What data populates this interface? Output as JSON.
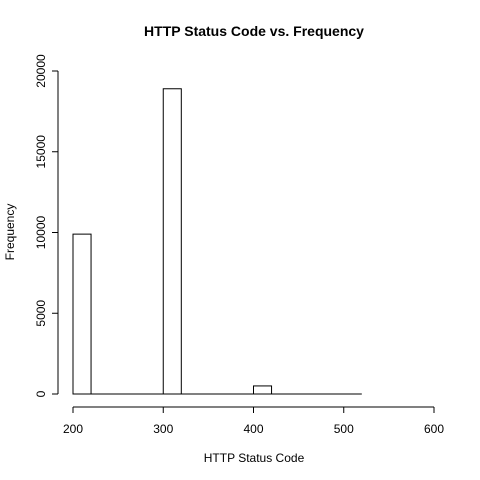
{
  "chart_data": {
    "type": "bar",
    "title": "HTTP Status Code vs. Frequency",
    "xlabel": "HTTP Status Code",
    "ylabel": "Frequency",
    "xlim": [
      200,
      600
    ],
    "ylim": [
      0,
      20000
    ],
    "x_ticks": [
      200,
      300,
      400,
      500,
      600
    ],
    "y_ticks": [
      0,
      5000,
      10000,
      15000,
      20000
    ],
    "x_tick_labels": [
      "200",
      "300",
      "400",
      "500",
      "600"
    ],
    "y_tick_labels": [
      "0",
      "5000",
      "10000",
      "15000",
      "20000"
    ],
    "x_axis_end": 520,
    "bin_width": 20,
    "bins": [
      {
        "start": 200,
        "end": 220,
        "value": 9900
      },
      {
        "start": 220,
        "end": 240,
        "value": 0
      },
      {
        "start": 240,
        "end": 260,
        "value": 0
      },
      {
        "start": 260,
        "end": 280,
        "value": 0
      },
      {
        "start": 280,
        "end": 300,
        "value": 0
      },
      {
        "start": 300,
        "end": 320,
        "value": 18900
      },
      {
        "start": 320,
        "end": 340,
        "value": 0
      },
      {
        "start": 340,
        "end": 360,
        "value": 0
      },
      {
        "start": 360,
        "end": 380,
        "value": 0
      },
      {
        "start": 380,
        "end": 400,
        "value": 0
      },
      {
        "start": 400,
        "end": 420,
        "value": 500
      },
      {
        "start": 420,
        "end": 440,
        "value": 0
      },
      {
        "start": 440,
        "end": 460,
        "value": 0
      },
      {
        "start": 460,
        "end": 480,
        "value": 0
      },
      {
        "start": 480,
        "end": 500,
        "value": 0
      },
      {
        "start": 500,
        "end": 520,
        "value": 0
      }
    ],
    "grid": false,
    "legend": "none",
    "colors": {
      "bar_fill": "#ffffff",
      "bar_stroke": "#000000",
      "axis": "#000000",
      "text": "#000000",
      "background": "#ffffff"
    }
  }
}
